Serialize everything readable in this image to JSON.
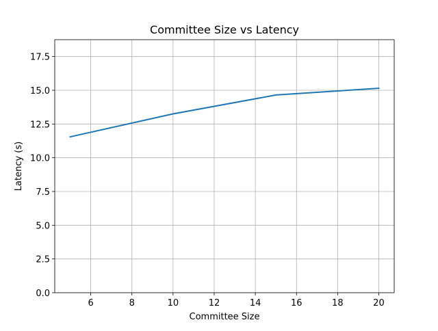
{
  "chart_data": {
    "type": "line",
    "title": "Committee Size vs Latency",
    "xlabel": "Committee Size",
    "ylabel": "Latency (s)",
    "xlim": [
      4.25,
      20.75
    ],
    "ylim": [
      0.0,
      18.75
    ],
    "xticks": [
      6,
      8,
      10,
      12,
      14,
      16,
      18,
      20
    ],
    "xtick_labels": [
      "6",
      "8",
      "10",
      "12",
      "14",
      "16",
      "18",
      "20"
    ],
    "yticks": [
      0.0,
      2.5,
      5.0,
      7.5,
      10.0,
      12.5,
      15.0,
      17.5
    ],
    "ytick_labels": [
      "0.0",
      "2.5",
      "5.0",
      "7.5",
      "10.0",
      "12.5",
      "15.0",
      "17.5"
    ],
    "grid": true,
    "series": [
      {
        "color": "#1f77b4",
        "x": [
          5,
          10,
          15,
          20
        ],
        "y": [
          11.55,
          13.25,
          14.65,
          15.15
        ]
      }
    ]
  }
}
